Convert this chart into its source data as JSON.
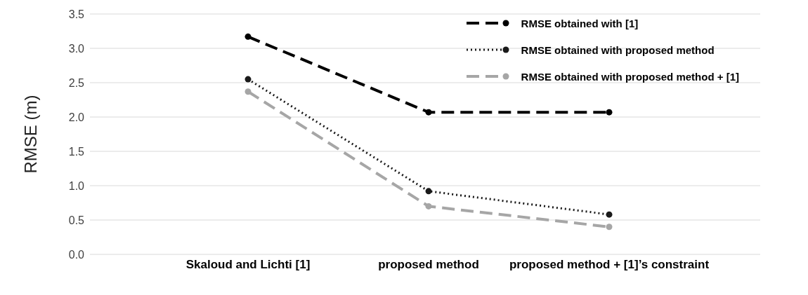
{
  "chart_data": {
    "type": "line",
    "ylabel": "RMSE (m)",
    "categories": [
      "Skaloud and Lichti [1]",
      "proposed method",
      "proposed method + [1]’s constraint"
    ],
    "series": [
      {
        "name": "RMSE obtained with [1]",
        "color": "#000000",
        "line_style": "dashed",
        "values": [
          3.17,
          2.07,
          2.07
        ]
      },
      {
        "name": "RMSE obtained with proposed method",
        "color": "#1a1a1a",
        "line_style": "dotted",
        "values": [
          2.55,
          0.92,
          0.58
        ]
      },
      {
        "name": "RMSE obtained with proposed method + [1]",
        "color": "#a6a6a6",
        "line_style": "dashed",
        "values": [
          2.37,
          0.7,
          0.4
        ]
      }
    ],
    "ylim": [
      0,
      3.5
    ],
    "yticks": [
      {
        "value": 0,
        "label": "0.0"
      },
      0.5,
      {
        "value": 1,
        "label": "1.0"
      },
      1.5,
      {
        "value": 2,
        "label": "2.0"
      },
      2.5,
      {
        "value": 3,
        "label": "3.0"
      },
      3.5
    ],
    "grid": "y",
    "legend": "top right",
    "marker": "circle"
  }
}
